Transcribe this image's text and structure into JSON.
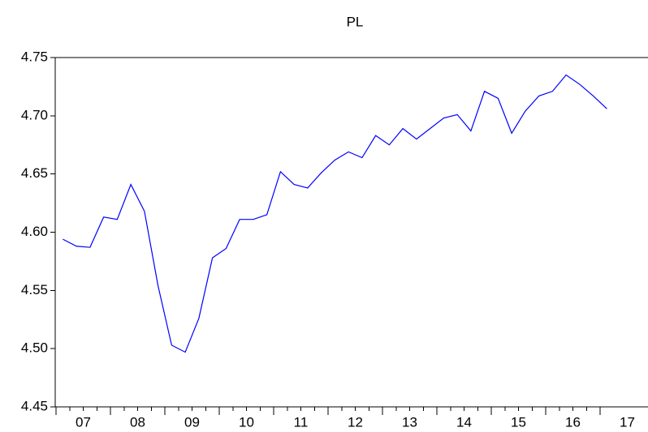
{
  "chart_data": {
    "type": "line",
    "title": "PL",
    "categories": [
      "07",
      null,
      null,
      null,
      "08",
      null,
      null,
      null,
      "09",
      null,
      null,
      null,
      "10",
      null,
      null,
      null,
      "11",
      null,
      null,
      null,
      "12",
      null,
      null,
      null,
      "13",
      null,
      null,
      null,
      "14",
      null,
      null,
      null,
      "15",
      null,
      null,
      null,
      "16",
      null,
      null,
      null,
      "17"
    ],
    "series": [
      {
        "name": "PL",
        "color": "#0000ff",
        "values": [
          4.594,
          4.588,
          4.587,
          4.613,
          4.611,
          4.641,
          4.618,
          4.554,
          4.503,
          4.497,
          4.526,
          4.578,
          4.586,
          4.611,
          4.611,
          4.615,
          4.652,
          4.641,
          4.638,
          4.651,
          4.662,
          4.669,
          4.664,
          4.683,
          4.675,
          4.689,
          4.68,
          4.689,
          4.698,
          4.701,
          4.687,
          4.721,
          4.715,
          4.685,
          4.704,
          4.717,
          4.721,
          4.735,
          4.727,
          4.717,
          4.706
        ]
      }
    ],
    "ylim": [
      4.45,
      4.75
    ],
    "yticks": [
      4.45,
      {
        "value": 4.5,
        "label": "4.50"
      },
      4.55,
      {
        "value": 4.6,
        "label": "4.60"
      },
      4.65,
      {
        "value": 4.7,
        "label": "4.70"
      },
      4.75
    ]
  }
}
